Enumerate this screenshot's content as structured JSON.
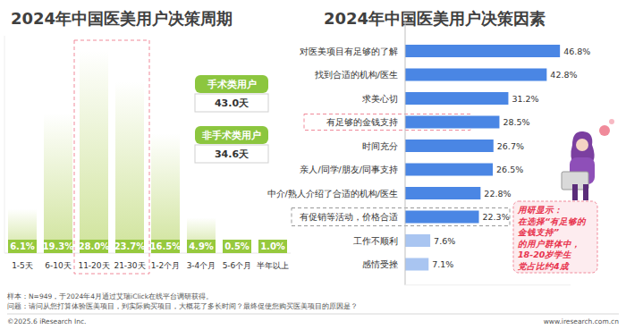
{
  "chart_data": [
    {
      "type": "bar",
      "title": "2024年中国医美用户决策周期",
      "categories": [
        "1-5天",
        "6-10天",
        "11-20天",
        "21-30天",
        "1-2个月",
        "3-4个月",
        "5-6个月",
        "半年以上"
      ],
      "values": [
        6.1,
        19.3,
        28.0,
        23.7,
        16.5,
        4.9,
        0.5,
        1.0
      ],
      "value_labels": [
        "6.1%",
        "19.3%",
        "28.0%",
        "23.7%",
        "16.5%",
        "4.9%",
        "0.5%",
        "1.0%"
      ],
      "color": "#cfe39a",
      "data_labels": true,
      "tick_labels": "x",
      "ylim": [
        0,
        30
      ],
      "annotations": [
        {
          "label": "手术类用户",
          "text": "43.0天"
        },
        {
          "label": "非手术类用户",
          "text": "34.6天"
        }
      ]
    },
    {
      "type": "bar",
      "orientation": "horizontal",
      "title": "2024年中国医美用户决策因素",
      "categories": [
        "对医美项目有足够的了解",
        "找到合适的机构/医生",
        "求美心切",
        "有足够的金钱支持",
        "时间充分",
        "亲人/同学/朋友/同事支持",
        "中介/熟人介绍了合适的机构/医生",
        "有促销等活动，价格合适",
        "工作不顺利",
        "感情受挫"
      ],
      "values": [
        46.8,
        42.8,
        31.2,
        28.5,
        26.7,
        26.5,
        22.8,
        22.3,
        7.6,
        7.1
      ],
      "value_labels": [
        "46.8%",
        "42.8%",
        "31.2%",
        "28.5%",
        "26.7%",
        "26.5%",
        "22.8%",
        "22.3%",
        "7.6%",
        "7.1%"
      ],
      "colors": [
        "#4a86e4",
        "#4a86e4",
        "#4a86e4",
        "#4a86e4",
        "#4a86e4",
        "#4a86e4",
        "#4a86e4",
        "#4a86e4",
        "#a9c5f1",
        "#a9c5f1"
      ],
      "data_labels": true,
      "tick_labels": "y",
      "xlim": [
        0,
        50
      ],
      "callout": [
        "用研显示：",
        "在选择“有足够的",
        "金钱支持”",
        "的用户群体中，",
        "18-20岁学生",
        "党占比约4成"
      ]
    }
  ],
  "footer": {
    "sample": "样本：N=949，于2024年4月通过艾瑞iClick在线平台调研获得。",
    "question": "问题：请问从您打算体验医美项目，到实际购买项目，大概花了多长时间？最终促使您购买医美项目的原因是？",
    "copyright": "©2025.6 iResearch Inc.",
    "website": "www.iresearch.com.cn"
  }
}
